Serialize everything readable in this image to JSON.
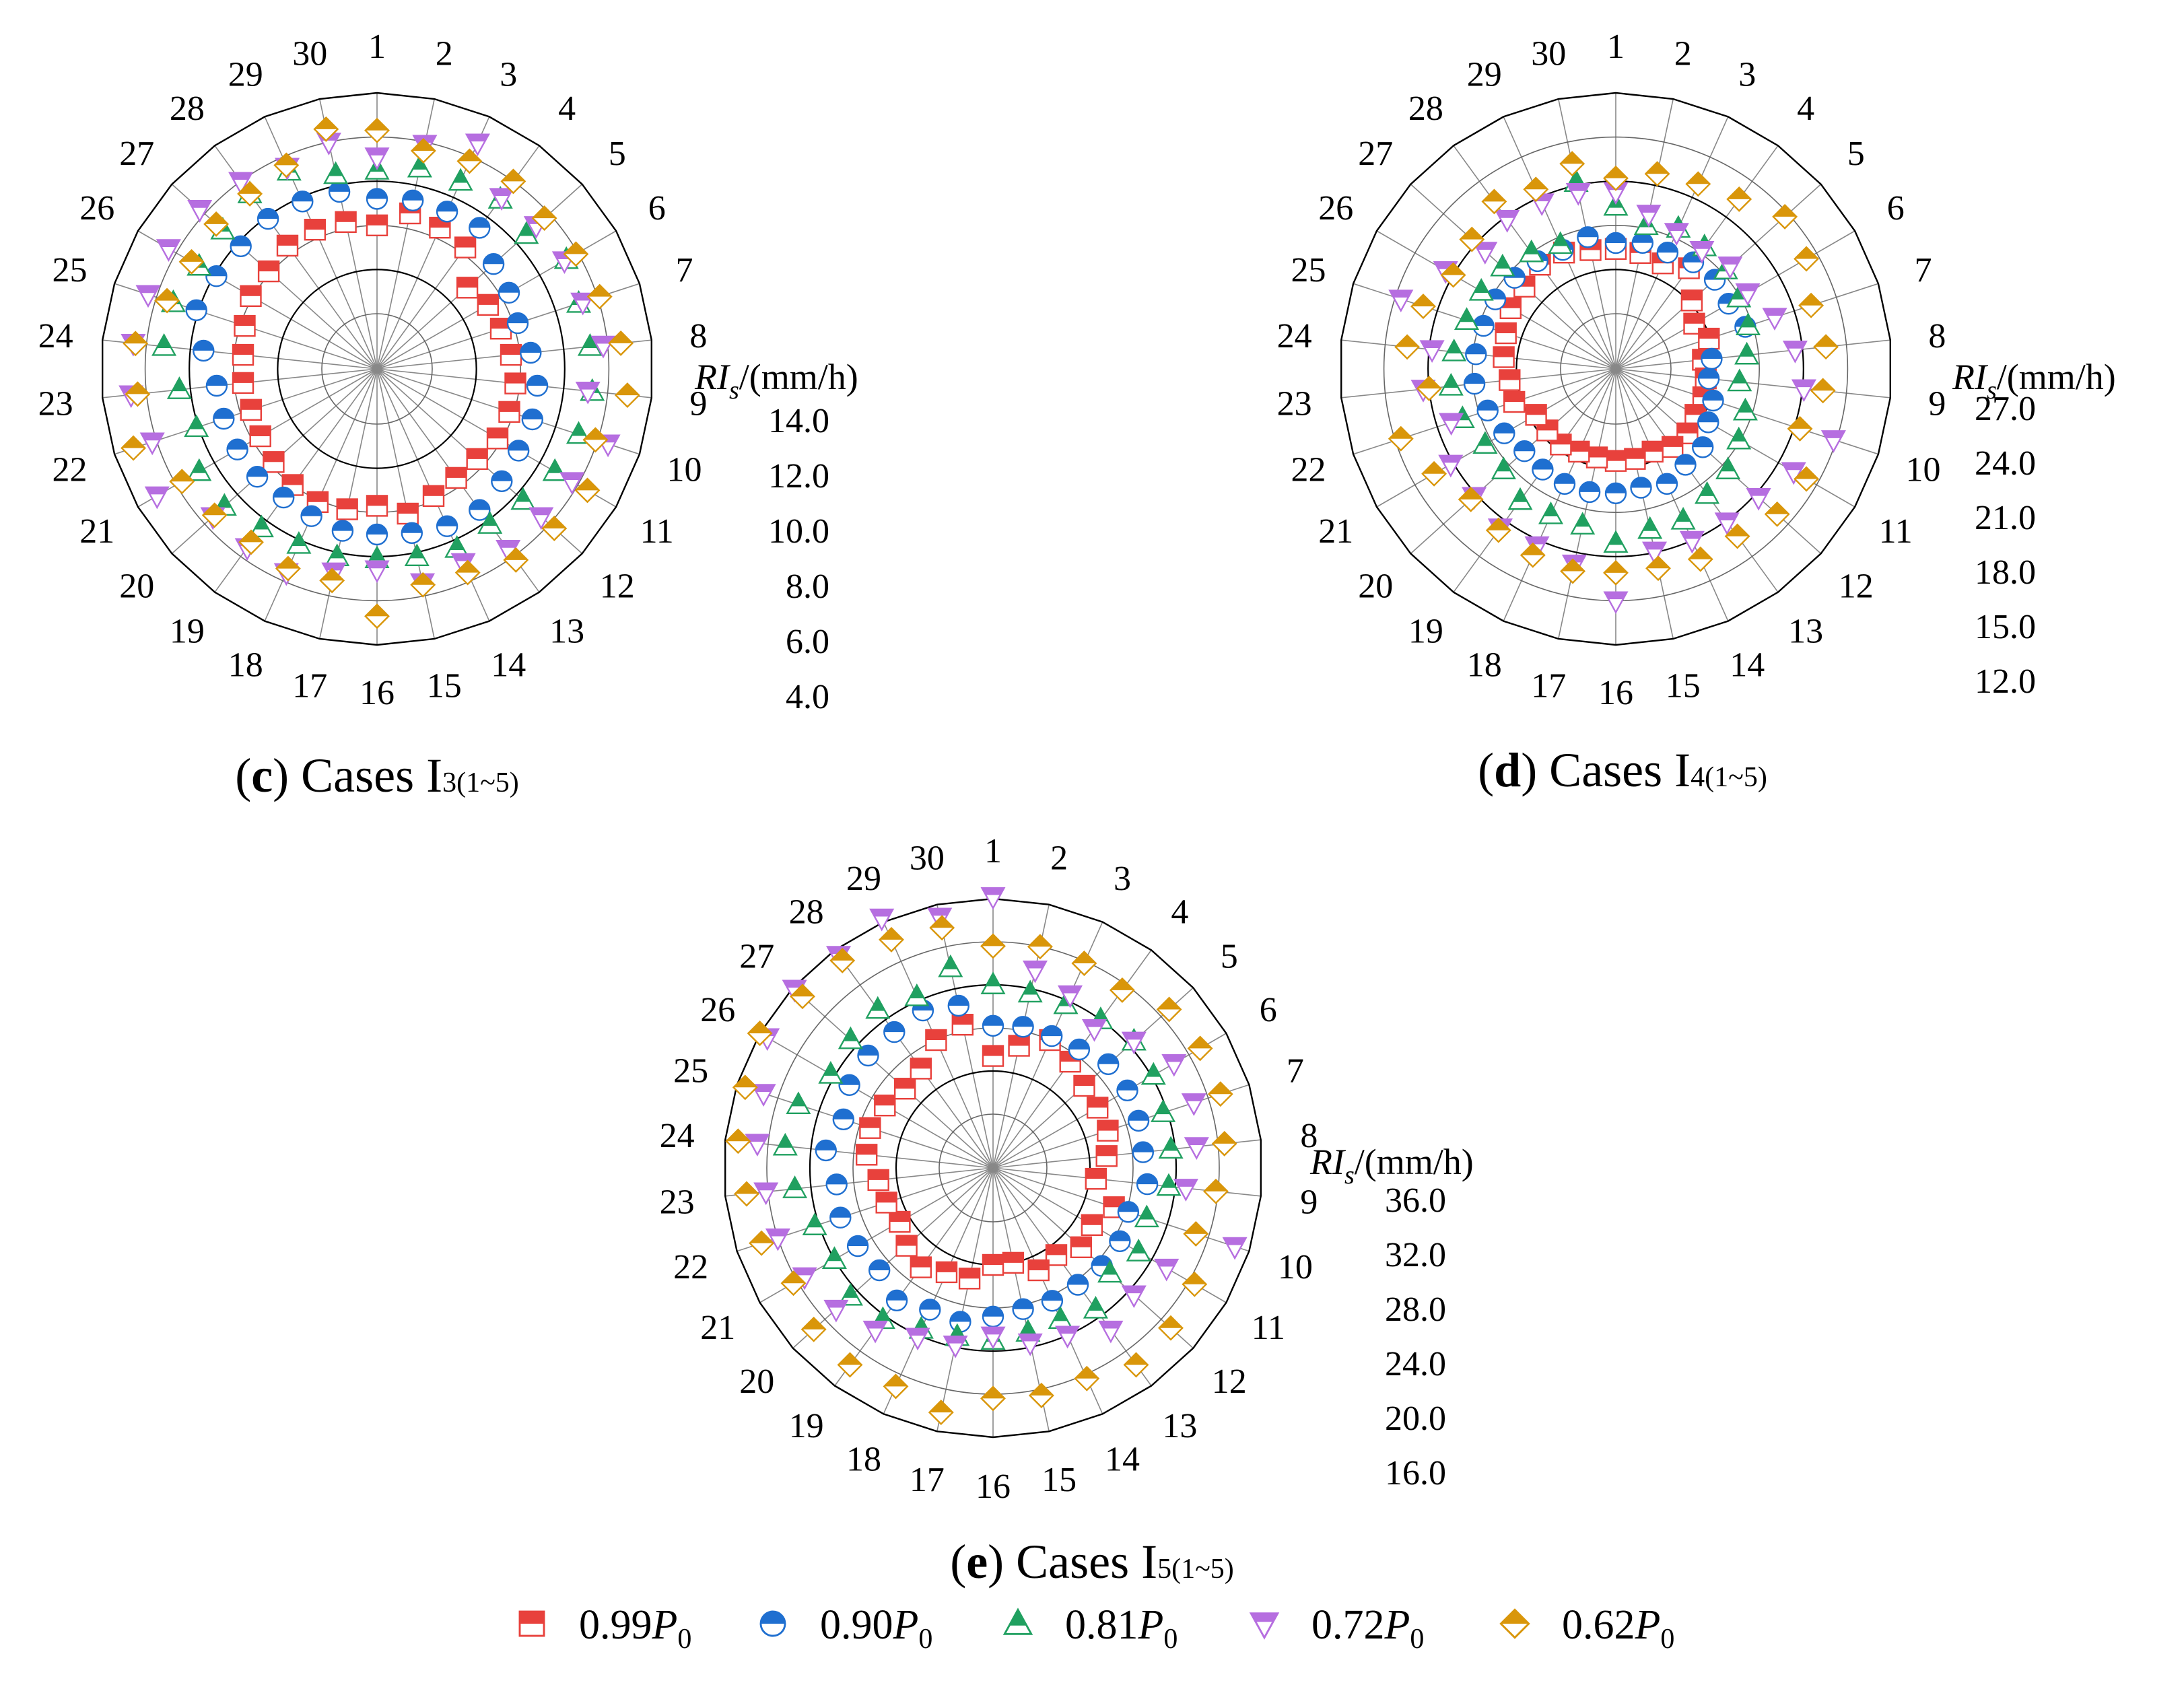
{
  "legend": {
    "items": [
      {
        "marker": "square-half",
        "color": "#e8413c",
        "label_value": "0.99",
        "label_sym": "P",
        "label_sub": "0"
      },
      {
        "marker": "circle-half",
        "color": "#1f6fd0",
        "label_value": "0.90",
        "label_sym": "P",
        "label_sub": "0"
      },
      {
        "marker": "triangle-up",
        "color": "#20a060",
        "label_value": "0.81",
        "label_sym": "P",
        "label_sub": "0"
      },
      {
        "marker": "triangle-down",
        "color": "#b66ee0",
        "label_value": "0.72",
        "label_sym": "P",
        "label_sub": "0"
      },
      {
        "marker": "diamond",
        "color": "#d9960a",
        "label_value": "0.62",
        "label_sym": "P",
        "label_sub": "0"
      }
    ]
  },
  "chart_data": [
    {
      "type": "polar-scatter",
      "caption_letter": "c",
      "caption_text": " Cases I",
      "caption_sub": "3(1~5)",
      "axis_label": "/(mm/h)",
      "axis_symbol": "RI",
      "axis_symbol_sub": "s",
      "r_ticks": [
        "14.0",
        "12.0",
        "10.0",
        "8.0",
        "6.0",
        "4.0"
      ],
      "r_min": 4.0,
      "r_max": 14.0,
      "angles": [
        "1",
        "2",
        "3",
        "4",
        "5",
        "6",
        "7",
        "8",
        "9",
        "10",
        "11",
        "12",
        "13",
        "14",
        "15",
        "16",
        "17",
        "18",
        "19",
        "20",
        "21",
        "22",
        "23",
        "24",
        "25",
        "26",
        "27",
        "28",
        "29",
        "30"
      ],
      "series": [
        {
          "name": "0.99P0",
          "values": [
            8.0,
            8.7,
            8.5,
            8.3,
            7.0,
            7.3,
            7.4,
            7.6,
            7.8,
            7.8,
            7.8,
            7.6,
            7.6,
            7.8,
            8.2,
            7.7,
            8.0,
            8.1,
            8.0,
            7.8,
            7.6,
            7.5,
            7.6,
            7.6,
            7.8,
            8.1,
            8.1,
            8.4,
            8.4,
            8.3
          ]
        },
        {
          "name": "0.90P0",
          "values": [
            9.2,
            9.3,
            9.3,
            9.4,
            8.6,
            8.4,
            8.2,
            8.5,
            8.8,
            8.9,
            8.9,
            9.1,
            9.4,
            9.3,
            9.1,
            9.0,
            9.0,
            8.8,
            8.7,
            8.8,
            8.8,
            8.8,
            8.8,
            9.4,
            10.1,
            9.9,
            9.8,
            9.9,
            9.8,
            9.7
          ]
        },
        {
          "name": "0.81P0",
          "values": [
            10.5,
            10.8,
            10.8,
            11.0,
            10.6,
            11.4,
            11.1,
            11.2,
            11.3,
            11.1,
            10.8,
            10.4,
            10.2,
            10.4,
            10.2,
            10.1,
            10.2,
            10.2,
            10.4,
            10.8,
            10.8,
            10.1,
            10.5,
            11.2,
            11.2,
            10.8,
            10.9,
            11.3,
            11.3,
            10.5
          ]
        },
        {
          "name": "0.72P0",
          "values": [
            11.1,
            11.9,
            12.7,
            11.1,
            11.2,
            11.3,
            11.3,
            11.8,
            11.1,
            12.5,
            11.7,
            11.5,
            11.6,
            11.1,
            11.4,
            10.6,
            10.9,
            11.6,
            11.5,
            11.5,
            13.0,
            12.2,
            12.7,
            12.6,
            12.4,
            12.4,
            12.3,
            12.0,
            11.5,
            12.0
          ]
        },
        {
          "name": "0.62P0",
          "values": [
            12.3,
            11.6,
            11.8,
            12.0,
            11.7,
            11.9,
            12.1,
            12.6,
            12.9,
            11.9,
            12.5,
            12.3,
            12.2,
            11.6,
            11.5,
            12.7,
            11.3,
            11.4,
            11.2,
            11.4,
            11.7,
            13.1,
            12.4,
            12.5,
            11.5,
            11.2,
            11.3,
            11.3,
            11.6,
            12.6
          ]
        }
      ]
    },
    {
      "type": "polar-scatter",
      "caption_letter": "d",
      "caption_text": " Cases I",
      "caption_sub": "4(1~5)",
      "axis_label": "/(mm/h)",
      "axis_symbol": "RI",
      "axis_symbol_sub": "s",
      "r_ticks": [
        "27.0",
        "24.0",
        "21.0",
        "18.0",
        "15.0",
        "12.0"
      ],
      "r_min": 12.0,
      "r_max": 27.0,
      "angles": [
        "1",
        "2",
        "3",
        "4",
        "5",
        "6",
        "7",
        "8",
        "9",
        "10",
        "11",
        "12",
        "13",
        "14",
        "15",
        "16",
        "17",
        "18",
        "19",
        "20",
        "21",
        "22",
        "23",
        "24",
        "25",
        "26",
        "27",
        "28",
        "29",
        "30"
      ],
      "series": [
        {
          "name": "0.99P0",
          "values": [
            16.4,
            16.3,
            16.1,
            16.7,
            15.2,
            14.4,
            14.9,
            14.2,
            14.4,
            14.5,
            14.5,
            14.8,
            14.8,
            14.4,
            14.5,
            14.5,
            14.4,
            14.4,
            14.6,
            14.5,
            14.5,
            15.5,
            15.5,
            15.9,
            16.1,
            16.5,
            16.6,
            17.0,
            16.9,
            16.5
          ]
        },
        {
          "name": "0.90P0",
          "values": [
            16.8,
            17.0,
            16.9,
            17.2,
            17.3,
            17.1,
            17.5,
            14.8,
            14.6,
            15.2,
            15.5,
            16.2,
            16.3,
            16.8,
            16.5,
            16.7,
            16.8,
            16.8,
            16.7,
            16.6,
            17.0,
            17.4,
            17.9,
            17.8,
            17.7,
            17.7,
            17.5,
            17.3,
            17.1,
            17.4
          ]
        },
        {
          "name": "0.81P0",
          "values": [
            19.3,
            18.2,
            18.7,
            18.5,
            18.3,
            17.9,
            17.7,
            17.2,
            16.7,
            17.5,
            17.9,
            18.5,
            18.8,
            19.5,
            19.4,
            20.1,
            19.1,
            19.1,
            19.3,
            18.5,
            18.5,
            19.2,
            19.5,
            19.3,
            18.9,
            18.8,
            18.6,
            18.0,
            17.5,
            21.2
          ]
        },
        {
          "name": "0.72P0",
          "values": [
            20.3,
            19.0,
            18.4,
            18.2,
            18.7,
            18.6,
            19.6,
            20.5,
            21.1,
            23.8,
            22.2,
            21.3,
            21.1,
            21.0,
            20.9,
            24.0,
            21.8,
            21.4,
            21.6,
            21.2,
            21.2,
            20.0,
            21.4,
            20.8,
            23.6,
            21.6,
            20.2,
            20.8,
            20.6,
            20.5
          ]
        },
        {
          "name": "0.62P0",
          "values": [
            21.2,
            21.8,
            22.0,
            22.5,
            23.7,
            23.2,
            22.2,
            22.6,
            22.4,
            21.4,
            23.2,
            23.0,
            22.3,
            22.4,
            22.1,
            22.1,
            22.3,
            22.1,
            21.8,
            21.5,
            22.5,
            23.6,
            21.0,
            22.5,
            22.0,
            21.0,
            21.4,
            22.3,
            21.6,
            22.5
          ]
        }
      ]
    },
    {
      "type": "polar-scatter",
      "caption_letter": "e",
      "caption_text": " Cases I",
      "caption_sub": "5(1~5)",
      "axis_label": "/(mm/h)",
      "axis_symbol": "RI",
      "axis_symbol_sub": "s",
      "r_ticks": [
        "36.0",
        "32.0",
        "28.0",
        "24.0",
        "20.0",
        "16.0"
      ],
      "r_min": 16.0,
      "r_max": 36.0,
      "angles": [
        "1",
        "2",
        "3",
        "4",
        "5",
        "6",
        "7",
        "8",
        "9",
        "10",
        "11",
        "12",
        "13",
        "14",
        "15",
        "16",
        "17",
        "18",
        "19",
        "20",
        "21",
        "22",
        "23",
        "24",
        "25",
        "26",
        "27",
        "28",
        "29",
        "30"
      ],
      "series": [
        {
          "name": "0.99P0",
          "values": [
            21.4,
            22.6,
            24.0,
            23.2,
            22.4,
            22.2,
            22.2,
            21.6,
            20.6,
            22.8,
            21.6,
            22.0,
            21.0,
            21.4,
            20.0,
            20.0,
            21.5,
            21.6,
            22.4,
            21.8,
            21.0,
            21.4,
            21.7,
            22.8,
            23.0,
            22.6,
            22.0,
            22.4,
            24.0,
            24.6
          ]
        },
        {
          "name": "0.90P0",
          "values": [
            24.2,
            24.4,
            24.4,
            24.6,
            25.4,
            25.4,
            25.2,
            25.0,
            25.4,
            24.2,
            24.6,
            24.6,
            24.4,
            24.5,
            24.4,
            24.8,
            25.6,
            25.4,
            26.2,
            25.2,
            25.5,
            25.9,
            25.6,
            26.6,
            25.6,
            26.4,
            26.6,
            26.6,
            27.0,
            26.4
          ]
        },
        {
          "name": "0.81P0",
          "values": [
            28.0,
            27.6,
            27.6,
            28.0,
            28.6,
            28.2,
            27.6,
            27.6,
            27.4,
            26.0,
            26.6,
            25.6,
            27.2,
            26.4,
            26.6,
            27.0,
            27.0,
            27.4,
            28.4,
            28.8,
            28.0,
            28.4,
            29.5,
            30.4,
            30.0,
            28.4,
            28.8,
            29.2,
            28.4,
            30.0
          ]
        },
        {
          "name": "0.72P0",
          "values": [
            36.2,
            29.8,
            28.6,
            27.0,
            28.6,
            30.4,
            30.6,
            30.0,
            29.0,
            34.6,
            29.6,
            28.6,
            29.6,
            28.0,
            27.6,
            26.6,
            27.8,
            28.2,
            29.6,
            30.6,
            31.2,
            32.0,
            32.2,
            33.0,
            33.4,
            35.2,
            35.8,
            35.4,
            36.4,
            34.8
          ]
        },
        {
          "name": "0.62P0",
          "values": [
            31.6,
            32.0,
            31.8,
            31.4,
            33.0,
            33.2,
            33.2,
            32.6,
            31.8,
            30.8,
            32.6,
            33.2,
            33.6,
            32.4,
            32.6,
            32.4,
            34.2,
            33.2,
            33.6,
            33.4,
            32.4,
            33.6,
            34.0,
            34.8,
            35.2,
            36.0,
            34.8,
            34.8,
            34.2,
            33.8
          ]
        }
      ]
    }
  ]
}
